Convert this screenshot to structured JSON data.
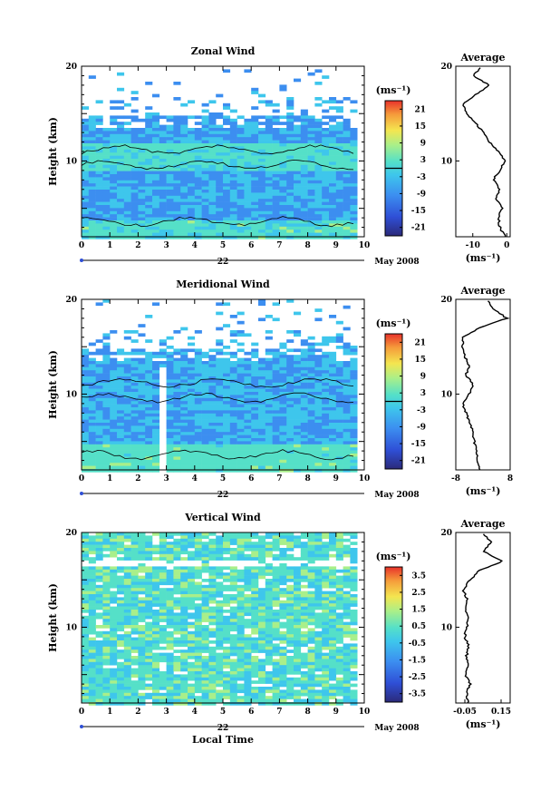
{
  "chart_data": [
    {
      "type": "heatmap",
      "title": "Zonal Wind",
      "xlabel": "",
      "ylabel": "Height (km)",
      "xlim": [
        0,
        10
      ],
      "ylim": [
        2,
        20
      ],
      "x_ticks": [
        "0",
        "1",
        "2",
        "3",
        "4",
        "5",
        "6",
        "7",
        "8",
        "9",
        "10"
      ],
      "y_ticks": [
        "10",
        "20"
      ],
      "date_label": "22",
      "month_label": "May 2008",
      "colorbar": {
        "unit": "(ms⁻¹)",
        "ticks": [
          "21",
          "15",
          "9",
          "3",
          "-3",
          "-9",
          "-15",
          "-21"
        ],
        "range": [
          -24,
          24
        ],
        "line_at": 0
      },
      "profile": {
        "title": "Average",
        "xlabel": "(ms⁻¹)",
        "xlim": [
          -15,
          1
        ],
        "x_ticks": [
          "-10",
          "0"
        ],
        "x_tick_values": [
          -10,
          0
        ],
        "y_ticks": [
          "10",
          "20"
        ],
        "heights": [
          2,
          3,
          4,
          5,
          6,
          7,
          8,
          9,
          10,
          11,
          12,
          13,
          14,
          15,
          16,
          17,
          18,
          19,
          20
        ],
        "values": [
          -0.5,
          -2,
          -2.5,
          -1.5,
          -3,
          -2,
          -4,
          -2,
          -0.5,
          -2.5,
          -5,
          -7,
          -9,
          -12,
          -13,
          -9,
          -5,
          -10,
          -7
        ]
      }
    },
    {
      "type": "heatmap",
      "title": "Meridional Wind",
      "xlabel": "",
      "ylabel": "Height (km)",
      "xlim": [
        0,
        10
      ],
      "ylim": [
        2,
        20
      ],
      "x_ticks": [
        "0",
        "1",
        "2",
        "3",
        "4",
        "5",
        "6",
        "7",
        "8",
        "9",
        "10"
      ],
      "y_ticks": [
        "10",
        "20"
      ],
      "date_label": "22",
      "month_label": "May 2008",
      "colorbar": {
        "unit": "(ms⁻¹)",
        "ticks": [
          "21",
          "15",
          "9",
          "3",
          "-3",
          "-9",
          "-15",
          "-21"
        ],
        "range": [
          -24,
          24
        ],
        "line_at": 0
      },
      "profile": {
        "title": "Average",
        "xlabel": "(ms⁻¹)",
        "xlim": [
          -8,
          8
        ],
        "x_ticks": [
          "-8",
          "8"
        ],
        "x_tick_values": [
          -8,
          8
        ],
        "y_ticks": [
          "10",
          "20"
        ],
        "heights": [
          2,
          3,
          4,
          5,
          6,
          7,
          8,
          9,
          10,
          11,
          12,
          13,
          14,
          15,
          16,
          17,
          18,
          19,
          20
        ],
        "values": [
          -1,
          -1.5,
          -2,
          -2.5,
          -3,
          -4,
          -5,
          -6,
          -4,
          -3,
          -5,
          -4,
          -5.5,
          -6,
          -6,
          -1,
          7,
          3,
          1
        ]
      }
    },
    {
      "type": "heatmap",
      "title": "Vertical Wind",
      "xlabel": "Local Time",
      "ylabel": "Height (km)",
      "xlim": [
        0,
        10
      ],
      "ylim": [
        2,
        20
      ],
      "x_ticks": [
        "0",
        "1",
        "2",
        "3",
        "4",
        "5",
        "6",
        "7",
        "8",
        "9",
        "10"
      ],
      "y_ticks": [
        "10",
        "20"
      ],
      "date_label": "22",
      "month_label": "May 2008",
      "colorbar": {
        "unit": "(ms⁻¹)",
        "ticks": [
          "3.5",
          "2.5",
          "1.5",
          "0.5",
          "-0.5",
          "-1.5",
          "-2.5",
          "-3.5"
        ],
        "range": [
          -4,
          4
        ],
        "line_at": null
      },
      "profile": {
        "title": "Average",
        "xlabel": "(ms⁻¹)",
        "xlim": [
          -0.1,
          0.2
        ],
        "x_ticks": [
          "-0.05",
          "0.15"
        ],
        "x_tick_values": [
          -0.05,
          0.15
        ],
        "y_ticks": [
          "10",
          "20"
        ],
        "heights": [
          2,
          3,
          4,
          5,
          6,
          7,
          8,
          9,
          10,
          11,
          12,
          13,
          14,
          15,
          16,
          17,
          18,
          19,
          20
        ],
        "values": [
          -0.03,
          -0.04,
          -0.02,
          -0.05,
          -0.03,
          -0.04,
          -0.03,
          -0.05,
          -0.04,
          -0.03,
          -0.05,
          -0.04,
          -0.06,
          -0.02,
          0.03,
          0.16,
          0.05,
          0.1,
          0.04
        ]
      }
    }
  ]
}
